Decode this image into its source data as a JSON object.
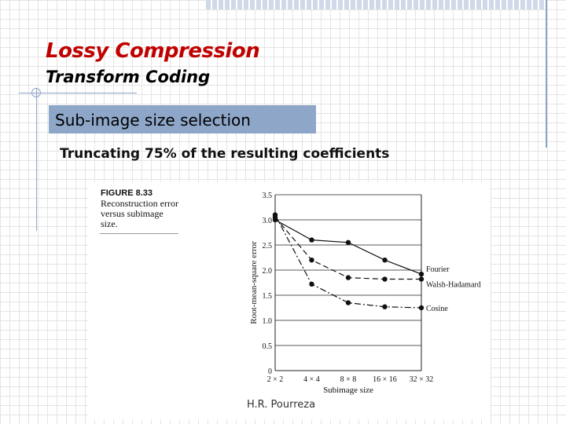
{
  "slide": {
    "title": "Lossy Compression",
    "subtitle": "Transform Coding",
    "section": "Sub-image size selection",
    "bullet": "Truncating 75% of the resulting coefficients",
    "footer": "H.R. Pourreza"
  },
  "figure": {
    "number": "FIGURE 8.33",
    "caption": "Reconstruction error versus subimage size."
  },
  "chart_data": {
    "type": "line",
    "categories": [
      "2 × 2",
      "4 × 4",
      "8 × 8",
      "16 × 16",
      "32 × 32"
    ],
    "xlabel": "Subimage size",
    "ylabel": "Root-mean-square error",
    "ylim": [
      0,
      3.5
    ],
    "yticks": [
      "0",
      "0.5",
      "1.0",
      "1.5",
      "2.0",
      "2.5",
      "3.0",
      "3.5"
    ],
    "grid": "horizontal",
    "series": [
      {
        "name": "Fourier",
        "values": [
          3.0,
          2.6,
          2.55,
          2.2,
          1.92
        ],
        "style": "solid"
      },
      {
        "name": "Walsh-Hadamard",
        "values": [
          3.05,
          2.2,
          1.85,
          1.82,
          1.82
        ],
        "style": "dashed"
      },
      {
        "name": "Cosine",
        "values": [
          3.1,
          1.72,
          1.35,
          1.27,
          1.25
        ],
        "style": "dashdot"
      }
    ]
  }
}
